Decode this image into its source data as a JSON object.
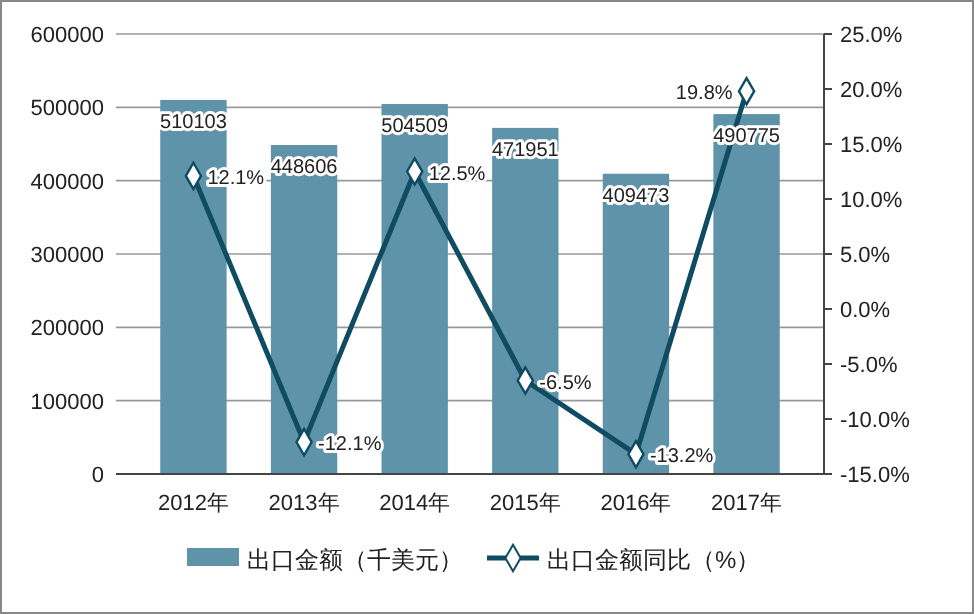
{
  "chart_data": {
    "type": "bar",
    "categories": [
      "2012年",
      "2013年",
      "2014年",
      "2015年",
      "2016年",
      "2017年"
    ],
    "series": [
      {
        "name": "出口金额（千美元）",
        "color": "#5f93aa",
        "values": [
          510103,
          448606,
          504509,
          471951,
          409473,
          490775
        ],
        "value_labels": [
          "510103",
          "448606",
          "504509",
          "471951",
          "409473",
          "490775"
        ]
      },
      {
        "name": "出口金额同比（%）",
        "type": "line",
        "axis": "y2",
        "color": "#0f4c62",
        "marker": "diamond",
        "values": [
          12.1,
          -12.1,
          12.5,
          -6.5,
          -13.2,
          19.8
        ],
        "value_labels": [
          "12.1%",
          "-12.1%",
          "12.5%",
          "-6.5%",
          "-13.2%",
          "19.8%"
        ]
      }
    ],
    "ylim": [
      0,
      600000
    ],
    "yticks": [
      0,
      100000,
      200000,
      300000,
      400000,
      500000,
      600000
    ],
    "y2lim": [
      -15,
      25
    ],
    "y2ticks": [
      {
        "value": -15,
        "label": "-15.0%"
      },
      {
        "value": -10,
        "label": "-10.0%"
      },
      {
        "value": -5,
        "label": "-5.0%"
      },
      {
        "value": 0,
        "label": "0.0%"
      },
      {
        "value": 5,
        "label": "5.0%"
      },
      {
        "value": 10,
        "label": "10.0%"
      },
      {
        "value": 15,
        "label": "15.0%"
      },
      {
        "value": 20,
        "label": "20.0%"
      },
      {
        "value": 25,
        "label": "25.0%"
      }
    ],
    "grid": "y",
    "legend": "bottom"
  }
}
